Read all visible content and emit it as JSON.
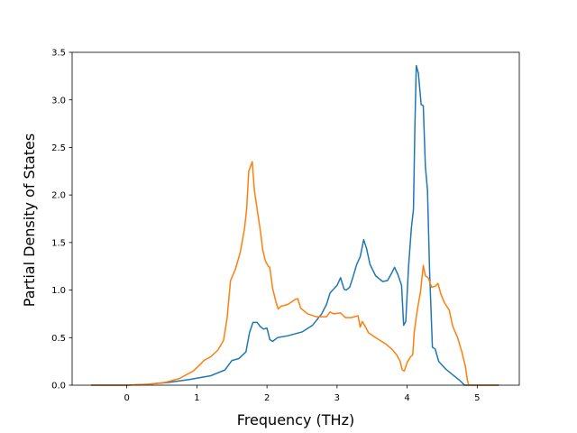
{
  "chart_data": {
    "type": "line",
    "title": "",
    "xlabel": "Frequency (THz)",
    "ylabel": "Partial Density of States",
    "xlim": [
      -0.78,
      5.6
    ],
    "ylim": [
      0.0,
      3.5
    ],
    "x_ticks": [
      0,
      1,
      2,
      3,
      4,
      5
    ],
    "y_ticks": [
      0.0,
      0.5,
      1.0,
      1.5,
      2.0,
      2.5,
      3.0,
      3.5
    ],
    "x_tick_labels": [
      "0",
      "1",
      "2",
      "3",
      "4",
      "5"
    ],
    "y_tick_labels": [
      "0.0",
      "0.5",
      "1.0",
      "1.5",
      "2.0",
      "2.5",
      "3.0",
      "3.5"
    ],
    "grid": false,
    "series": [
      {
        "color": "#1f77b4",
        "points": [
          [
            -0.5,
            0.0
          ],
          [
            0.0,
            0.0
          ],
          [
            0.3,
            0.01
          ],
          [
            0.6,
            0.03
          ],
          [
            0.9,
            0.06
          ],
          [
            1.2,
            0.1
          ],
          [
            1.4,
            0.16
          ],
          [
            1.5,
            0.26
          ],
          [
            1.6,
            0.28
          ],
          [
            1.7,
            0.35
          ],
          [
            1.75,
            0.55
          ],
          [
            1.8,
            0.66
          ],
          [
            1.86,
            0.66
          ],
          [
            1.9,
            0.62
          ],
          [
            1.95,
            0.59
          ],
          [
            2.0,
            0.6
          ],
          [
            2.04,
            0.48
          ],
          [
            2.08,
            0.46
          ],
          [
            2.15,
            0.5
          ],
          [
            2.3,
            0.52
          ],
          [
            2.5,
            0.56
          ],
          [
            2.65,
            0.63
          ],
          [
            2.78,
            0.75
          ],
          [
            2.85,
            0.85
          ],
          [
            2.9,
            0.97
          ],
          [
            3.0,
            1.05
          ],
          [
            3.05,
            1.13
          ],
          [
            3.1,
            1.01
          ],
          [
            3.13,
            1.0
          ],
          [
            3.18,
            1.03
          ],
          [
            3.22,
            1.12
          ],
          [
            3.28,
            1.27
          ],
          [
            3.33,
            1.35
          ],
          [
            3.38,
            1.53
          ],
          [
            3.42,
            1.44
          ],
          [
            3.47,
            1.27
          ],
          [
            3.55,
            1.15
          ],
          [
            3.65,
            1.09
          ],
          [
            3.72,
            1.1
          ],
          [
            3.78,
            1.18
          ],
          [
            3.82,
            1.24
          ],
          [
            3.87,
            1.16
          ],
          [
            3.92,
            1.05
          ],
          [
            3.95,
            0.63
          ],
          [
            3.98,
            0.67
          ],
          [
            4.02,
            1.25
          ],
          [
            4.06,
            1.65
          ],
          [
            4.09,
            1.85
          ],
          [
            4.11,
            2.7
          ],
          [
            4.13,
            3.36
          ],
          [
            4.16,
            3.28
          ],
          [
            4.2,
            2.95
          ],
          [
            4.23,
            2.94
          ],
          [
            4.26,
            2.3
          ],
          [
            4.29,
            2.05
          ],
          [
            4.32,
            1.2
          ],
          [
            4.36,
            0.4
          ],
          [
            4.4,
            0.38
          ],
          [
            4.45,
            0.25
          ],
          [
            4.55,
            0.17
          ],
          [
            4.65,
            0.11
          ],
          [
            4.75,
            0.05
          ],
          [
            4.82,
            0.0
          ],
          [
            5.3,
            0.0
          ]
        ]
      },
      {
        "color": "#ff7f0e",
        "points": [
          [
            -0.5,
            0.0
          ],
          [
            0.0,
            0.0
          ],
          [
            0.3,
            0.01
          ],
          [
            0.55,
            0.03
          ],
          [
            0.75,
            0.07
          ],
          [
            0.95,
            0.15
          ],
          [
            1.05,
            0.22
          ],
          [
            1.1,
            0.26
          ],
          [
            1.2,
            0.3
          ],
          [
            1.3,
            0.37
          ],
          [
            1.38,
            0.47
          ],
          [
            1.43,
            0.7
          ],
          [
            1.48,
            1.1
          ],
          [
            1.55,
            1.22
          ],
          [
            1.62,
            1.4
          ],
          [
            1.68,
            1.65
          ],
          [
            1.71,
            1.85
          ],
          [
            1.74,
            2.25
          ],
          [
            1.79,
            2.35
          ],
          [
            1.82,
            2.05
          ],
          [
            1.86,
            1.85
          ],
          [
            1.91,
            1.6
          ],
          [
            1.94,
            1.42
          ],
          [
            1.98,
            1.3
          ],
          [
            2.02,
            1.25
          ],
          [
            2.04,
            1.24
          ],
          [
            2.08,
            1.02
          ],
          [
            2.13,
            0.87
          ],
          [
            2.16,
            0.8
          ],
          [
            2.2,
            0.83
          ],
          [
            2.3,
            0.85
          ],
          [
            2.4,
            0.9
          ],
          [
            2.44,
            0.91
          ],
          [
            2.48,
            0.81
          ],
          [
            2.58,
            0.75
          ],
          [
            2.7,
            0.72
          ],
          [
            2.85,
            0.72
          ],
          [
            2.9,
            0.77
          ],
          [
            2.95,
            0.75
          ],
          [
            3.05,
            0.76
          ],
          [
            3.12,
            0.71
          ],
          [
            3.2,
            0.71
          ],
          [
            3.3,
            0.73
          ],
          [
            3.33,
            0.61
          ],
          [
            3.36,
            0.67
          ],
          [
            3.4,
            0.62
          ],
          [
            3.45,
            0.55
          ],
          [
            3.55,
            0.5
          ],
          [
            3.7,
            0.43
          ],
          [
            3.78,
            0.38
          ],
          [
            3.85,
            0.32
          ],
          [
            3.9,
            0.25
          ],
          [
            3.93,
            0.16
          ],
          [
            3.96,
            0.15
          ],
          [
            4.0,
            0.24
          ],
          [
            4.05,
            0.3
          ],
          [
            4.08,
            0.32
          ],
          [
            4.1,
            0.55
          ],
          [
            4.14,
            0.77
          ],
          [
            4.19,
            0.98
          ],
          [
            4.23,
            1.26
          ],
          [
            4.26,
            1.15
          ],
          [
            4.3,
            1.13
          ],
          [
            4.35,
            1.03
          ],
          [
            4.4,
            1.04
          ],
          [
            4.44,
            1.07
          ],
          [
            4.48,
            0.96
          ],
          [
            4.53,
            0.87
          ],
          [
            4.6,
            0.79
          ],
          [
            4.65,
            0.62
          ],
          [
            4.72,
            0.5
          ],
          [
            4.78,
            0.35
          ],
          [
            4.83,
            0.2
          ],
          [
            4.86,
            0.05
          ],
          [
            4.88,
            0.0
          ],
          [
            5.3,
            0.0
          ]
        ]
      }
    ]
  }
}
